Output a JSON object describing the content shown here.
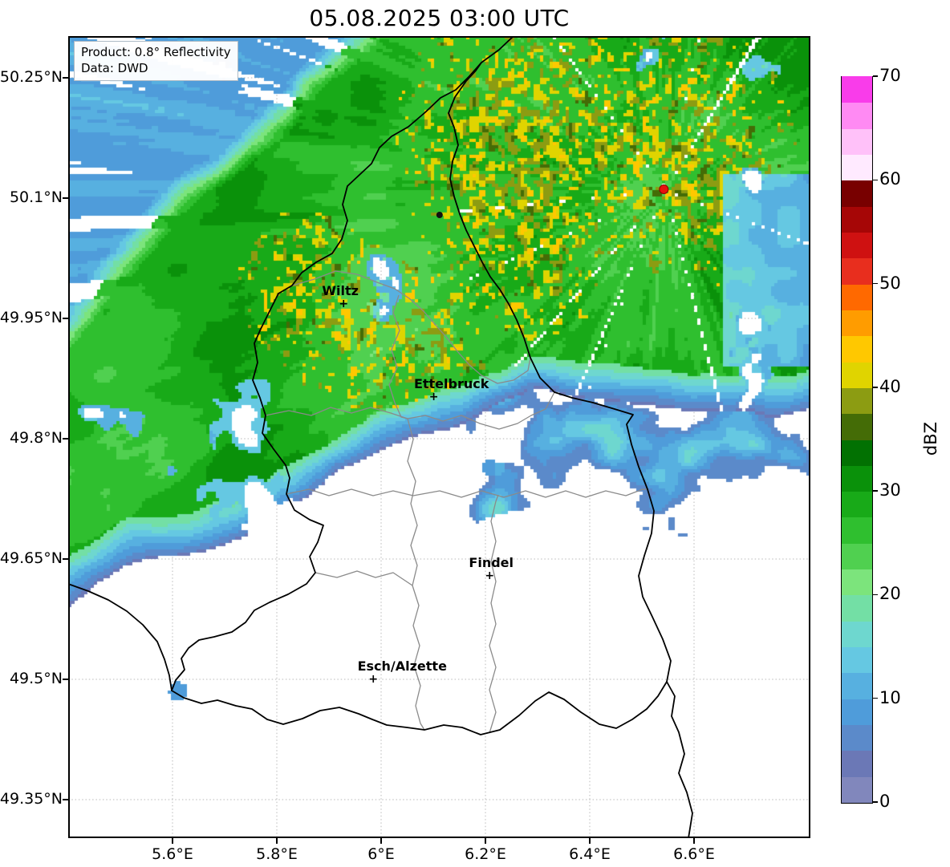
{
  "title": "05.08.2025 03:00 UTC",
  "info_box": {
    "product": "Product: 0.8° Reflectivity",
    "source": "Data: DWD"
  },
  "map": {
    "extent": {
      "lon_min": 5.4,
      "lon_max": 6.823,
      "lat_min": 49.302,
      "lat_max": 50.302
    },
    "lat_ticks": [
      {
        "label": "50.25°N",
        "value": 50.25
      },
      {
        "label": "50.1°N",
        "value": 50.1
      },
      {
        "label": "49.95°N",
        "value": 49.95
      },
      {
        "label": "49.8°N",
        "value": 49.8
      },
      {
        "label": "49.65°N",
        "value": 49.65
      },
      {
        "label": "49.5°N",
        "value": 49.5
      },
      {
        "label": "49.35°N",
        "value": 49.35
      }
    ],
    "lon_ticks": [
      {
        "label": "5.6°E",
        "value": 5.6
      },
      {
        "label": "5.8°E",
        "value": 5.8
      },
      {
        "label": "6°E",
        "value": 6.0
      },
      {
        "label": "6.2°E",
        "value": 6.2
      },
      {
        "label": "6.4°E",
        "value": 6.4
      },
      {
        "label": "6.6°E",
        "value": 6.6
      }
    ],
    "cities": [
      {
        "name": "Wiltz",
        "lon": 5.928,
        "lat": 49.966,
        "label_dx": -4
      },
      {
        "name": "Ettelbruck",
        "lon": 6.101,
        "lat": 49.85,
        "label_dx": 22
      },
      {
        "name": "Findel",
        "lon": 6.208,
        "lat": 49.627,
        "label_dx": 2
      },
      {
        "name": "Esch/Alzette",
        "lon": 5.985,
        "lat": 49.498,
        "label_dx": 36
      }
    ],
    "radar_site": {
      "lon": 6.542,
      "lat": 50.111,
      "color": "#e8120e"
    },
    "border_town_dot": {
      "lon": 6.112,
      "lat": 50.079
    }
  },
  "colorbar": {
    "label": "dBZ",
    "min": 0,
    "max": 70,
    "step": 2.5,
    "ticks": [
      0,
      10,
      20,
      30,
      40,
      50,
      60,
      70
    ],
    "colors_bottom_to_top": [
      "#8187bc",
      "#6b78b6",
      "#5b8aca",
      "#4f9cda",
      "#57b0e0",
      "#65c8e2",
      "#6ed7cf",
      "#73dfa5",
      "#7ce47c",
      "#50d050",
      "#2fbf2f",
      "#18aa18",
      "#0a910a",
      "#027102",
      "#446c06",
      "#8c9c12",
      "#e0d400",
      "#ffc800",
      "#ff9c00",
      "#ff6900",
      "#e82e1e",
      "#cf1111",
      "#a60606",
      "#780000",
      "#ffeaff",
      "#ffc1f9",
      "#ff8af3",
      "#f93cea"
    ]
  }
}
